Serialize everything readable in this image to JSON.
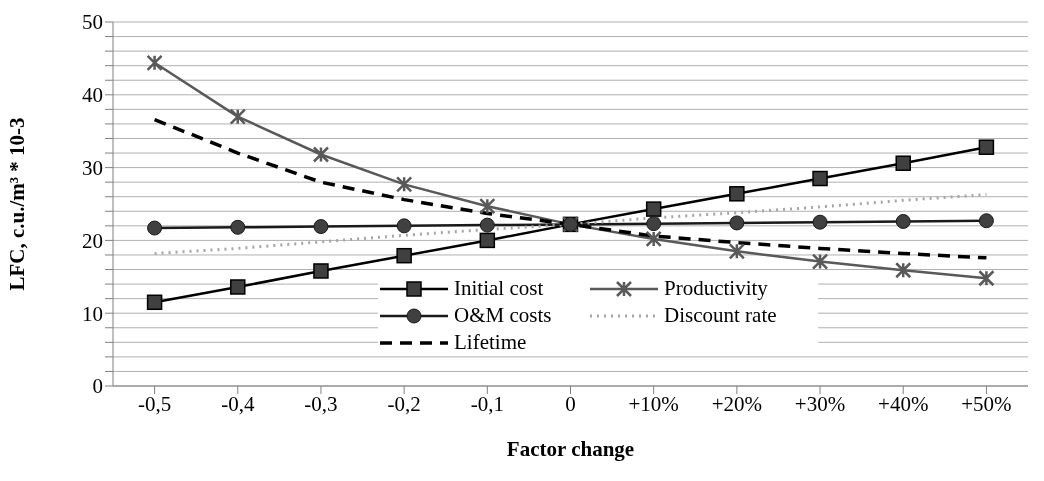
{
  "chart_data": {
    "type": "line",
    "xlabel": "Factor change",
    "ylabel": "LFC, c.u./m³ * 10-3",
    "categories": [
      "-0,5",
      "-0,4",
      "-0,3",
      "-0,2",
      "-0,1",
      "0",
      "+10%",
      "+20%",
      "+30%",
      "+40%",
      "+50%"
    ],
    "series": [
      {
        "name": "Initial cost",
        "color": "#000000",
        "marker": "square",
        "line_style": "solid",
        "values": [
          11.5,
          13.6,
          15.8,
          17.9,
          20.0,
          22.2,
          24.3,
          26.4,
          28.5,
          30.6,
          32.8
        ]
      },
      {
        "name": "Productivity",
        "color": "#595959",
        "marker": "cross",
        "line_style": "solid",
        "values": [
          44.4,
          37.0,
          31.8,
          27.7,
          24.7,
          22.2,
          20.2,
          18.5,
          17.1,
          15.9,
          14.8
        ]
      },
      {
        "name": "O&M costs",
        "color": "#1a1a1a",
        "marker": "circle",
        "line_style": "solid",
        "values": [
          21.7,
          21.8,
          21.9,
          22.0,
          22.1,
          22.2,
          22.3,
          22.4,
          22.5,
          22.6,
          22.7
        ]
      },
      {
        "name": "Discount rate",
        "color": "#a6a6a6",
        "marker": "none",
        "line_style": "dotted",
        "values": [
          18.2,
          18.9,
          19.8,
          20.7,
          21.5,
          22.2,
          23.1,
          23.8,
          24.6,
          25.5,
          26.3
        ]
      },
      {
        "name": "Lifetime",
        "color": "#000000",
        "marker": "none",
        "line_style": "dashed",
        "values": [
          36.6,
          32.0,
          28.0,
          25.6,
          23.7,
          22.2,
          20.6,
          19.7,
          18.9,
          18.2,
          17.6
        ]
      }
    ],
    "ylim": [
      0,
      50
    ],
    "yticks": [
      0,
      {
        "value": 2,
        "label": null
      },
      {
        "value": 4,
        "label": null
      },
      {
        "value": 6,
        "label": null
      },
      {
        "value": 8,
        "label": null
      },
      10,
      {
        "value": 12,
        "label": null
      },
      {
        "value": 14,
        "label": null
      },
      {
        "value": 16,
        "label": null
      },
      {
        "value": 18,
        "label": null
      },
      20,
      {
        "value": 22,
        "label": null
      },
      {
        "value": 24,
        "label": null
      },
      {
        "value": 26,
        "label": null
      },
      {
        "value": 28,
        "label": null
      },
      30,
      {
        "value": 32,
        "label": null
      },
      {
        "value": 34,
        "label": null
      },
      {
        "value": 36,
        "label": null
      },
      {
        "value": 38,
        "label": null
      },
      40,
      {
        "value": 42,
        "label": null
      },
      {
        "value": 44,
        "label": null
      },
      {
        "value": 46,
        "label": null
      },
      {
        "value": 48,
        "label": null
      },
      50
    ],
    "grid": "y",
    "legend": "bottom"
  }
}
